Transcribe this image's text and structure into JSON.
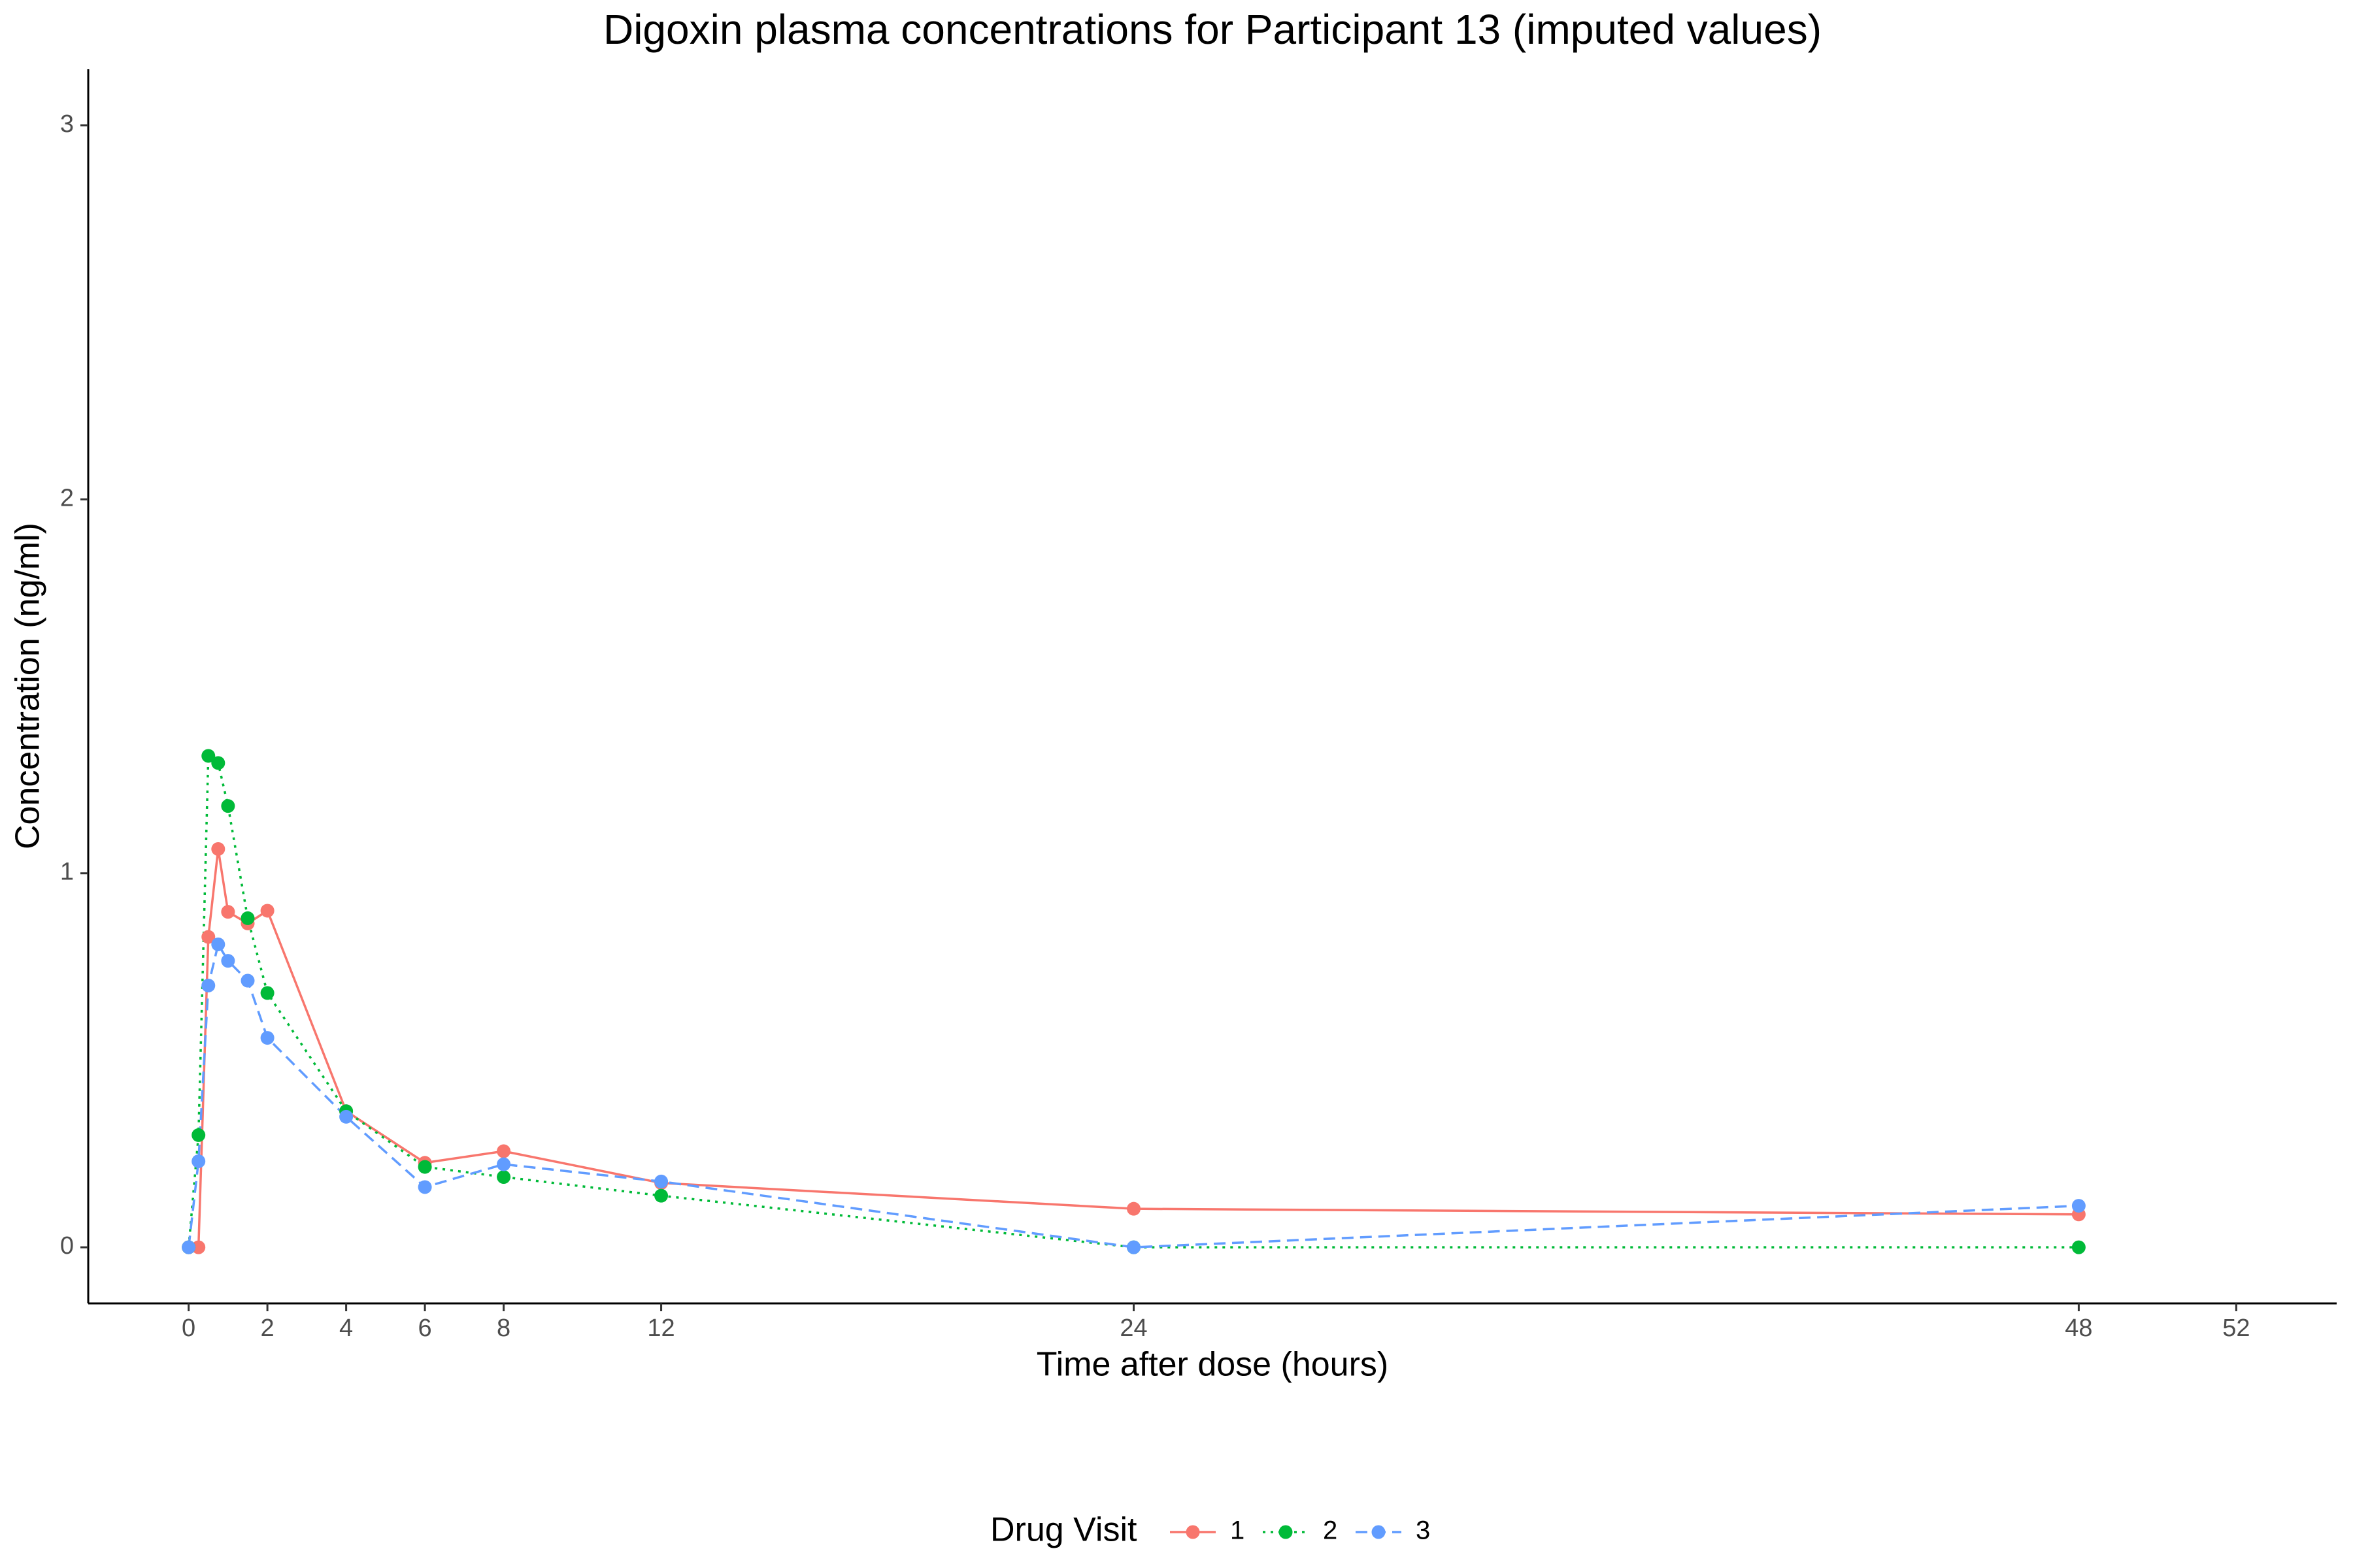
{
  "chart_data": {
    "type": "line",
    "title": "Digoxin plasma concentrations for Participant 13 (imputed values)",
    "x_label": "Time after dose (hours)",
    "y_label": "Concentration (ng/ml)",
    "legend_title": "Drug Visit",
    "legend_position": "bottom",
    "grid": false,
    "x": [
      0,
      0.25,
      0.5,
      0.75,
      1,
      1.5,
      2,
      4,
      6,
      8,
      12,
      24,
      48
    ],
    "series": [
      {
        "name": "1",
        "color": "#F8766D",
        "linetype": "solid",
        "values": [
          0,
          0,
          0.83,
          1.065,
          0.897,
          0.866,
          0.9,
          0.364,
          0.226,
          0.257,
          0.172,
          0.103,
          0.088
        ]
      },
      {
        "name": "2",
        "color": "#00BA38",
        "linetype": "dotted",
        "values": [
          0,
          0.3,
          1.314,
          1.295,
          1.18,
          0.88,
          0.68,
          0.364,
          0.215,
          0.188,
          0.138,
          0,
          0
        ]
      },
      {
        "name": "3",
        "color": "#619CFF",
        "linetype": "dashed",
        "values": [
          0,
          0.23,
          0.7,
          0.81,
          0.766,
          0.713,
          0.56,
          0.349,
          0.161,
          0.222,
          0.176,
          0,
          0.111
        ]
      }
    ],
    "xlim": [
      -2.55,
      54.55
    ],
    "ylim": [
      -0.15,
      3.15
    ],
    "xticks": [
      0,
      2,
      4,
      6,
      8,
      12,
      24,
      48,
      52
    ],
    "yticks": [
      0,
      1,
      2,
      3
    ]
  }
}
